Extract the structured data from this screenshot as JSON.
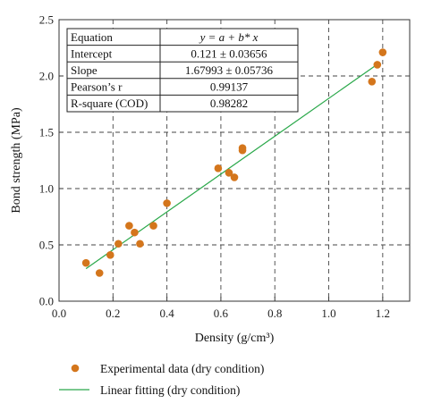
{
  "chart_data": {
    "type": "scatter",
    "xlabel": "Density (g/cm³)",
    "ylabel": "Bond strength (MPa)",
    "xlim": [
      0.0,
      1.3
    ],
    "ylim": [
      0.0,
      2.5
    ],
    "x_ticks": [
      "0.0",
      "0.2",
      "0.4",
      "0.6",
      "0.8",
      "1.0",
      "1.2"
    ],
    "y_ticks": [
      "0.0",
      "0.5",
      "1.0",
      "1.5",
      "2.0",
      "2.5"
    ],
    "grid": "dashed",
    "series": [
      {
        "name": "Experimental data (dry condition)",
        "kind": "points",
        "color": "#d4761c",
        "x": [
          0.1,
          0.15,
          0.19,
          0.22,
          0.26,
          0.28,
          0.3,
          0.35,
          0.4,
          0.59,
          0.63,
          0.65,
          0.68,
          0.68,
          1.16,
          1.18,
          1.2
        ],
        "y": [
          0.34,
          0.25,
          0.41,
          0.51,
          0.67,
          0.61,
          0.51,
          0.67,
          0.87,
          1.18,
          1.14,
          1.1,
          1.34,
          1.36,
          1.95,
          2.1,
          2.21
        ]
      },
      {
        "name": "Linear fitting (dry condition)",
        "kind": "line",
        "color": "#2aa84a",
        "x": [
          0.1,
          1.19
        ],
        "y": [
          0.289,
          2.12
        ]
      }
    ],
    "table": {
      "rows": [
        [
          "Equation",
          "y = a + b* x"
        ],
        [
          "Intercept",
          "0.121 ± 0.03656"
        ],
        [
          "Slope",
          "1.67993 ± 0.05736"
        ],
        [
          "Pearson’s r",
          "0.99137"
        ],
        [
          "R-square (COD)",
          "0.98282"
        ]
      ]
    }
  }
}
